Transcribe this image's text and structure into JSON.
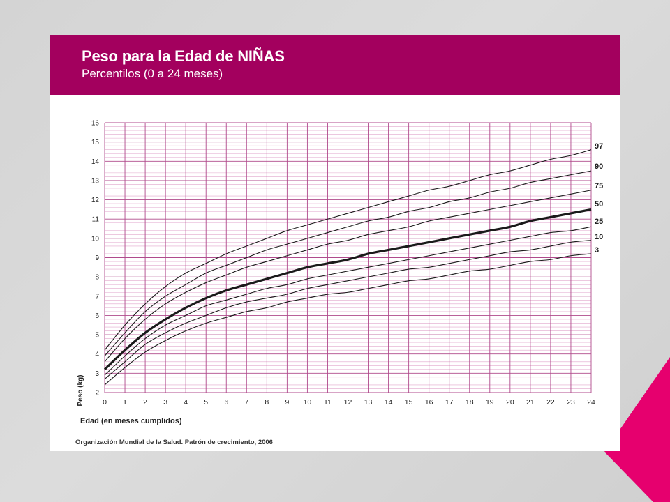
{
  "header": {
    "title": "Peso para la Edad de NIÑAS",
    "subtitle": "Percentilos (0 a 24 meses)"
  },
  "footer": {
    "source": "Organización Mundial de la Salud. Patrón de crecimiento, 2006"
  },
  "colors": {
    "header_bg": "#a3005e",
    "grid_major": "#b04a8c",
    "grid_minor": "#e2a6cc",
    "curve": "#1a1a1a",
    "accent": "#e6006e"
  },
  "chart_data": {
    "type": "line",
    "title": "Peso para la Edad de NIÑAS",
    "subtitle": "Percentilos (0 a 24 meses)",
    "xlabel": "Edad (en meses cumplidos)",
    "ylabel": "Peso (kg)",
    "xlim": [
      0,
      24
    ],
    "ylim": [
      2,
      16
    ],
    "x_ticks": [
      0,
      1,
      2,
      3,
      4,
      5,
      6,
      7,
      8,
      9,
      10,
      11,
      12,
      13,
      14,
      15,
      16,
      17,
      18,
      19,
      20,
      21,
      22,
      23,
      24
    ],
    "y_ticks": [
      2,
      3,
      4,
      5,
      6,
      7,
      8,
      9,
      10,
      11,
      12,
      13,
      14,
      15,
      16
    ],
    "grid": true,
    "legend": "right-end labels",
    "x": [
      0,
      1,
      2,
      3,
      4,
      5,
      6,
      7,
      8,
      9,
      10,
      11,
      12,
      13,
      14,
      15,
      16,
      17,
      18,
      19,
      20,
      21,
      22,
      23,
      24
    ],
    "series": [
      {
        "name": "97",
        "bold": false,
        "values": [
          4.2,
          5.5,
          6.6,
          7.5,
          8.2,
          8.7,
          9.2,
          9.6,
          10.0,
          10.4,
          10.7,
          11.0,
          11.3,
          11.6,
          11.9,
          12.2,
          12.5,
          12.7,
          13.0,
          13.3,
          13.5,
          13.8,
          14.1,
          14.3,
          14.6
        ]
      },
      {
        "name": "90",
        "bold": false,
        "values": [
          3.9,
          5.1,
          6.2,
          7.0,
          7.6,
          8.2,
          8.6,
          9.0,
          9.4,
          9.7,
          10.0,
          10.3,
          10.6,
          10.9,
          11.1,
          11.4,
          11.6,
          11.9,
          12.1,
          12.4,
          12.6,
          12.9,
          13.1,
          13.3,
          13.5
        ]
      },
      {
        "name": "75",
        "bold": false,
        "values": [
          3.6,
          4.8,
          5.8,
          6.6,
          7.2,
          7.7,
          8.1,
          8.5,
          8.8,
          9.1,
          9.4,
          9.7,
          9.9,
          10.2,
          10.4,
          10.6,
          10.9,
          11.1,
          11.3,
          11.5,
          11.7,
          11.9,
          12.1,
          12.3,
          12.5
        ]
      },
      {
        "name": "50",
        "bold": true,
        "values": [
          3.2,
          4.2,
          5.1,
          5.8,
          6.4,
          6.9,
          7.3,
          7.6,
          7.9,
          8.2,
          8.5,
          8.7,
          8.9,
          9.2,
          9.4,
          9.6,
          9.8,
          10.0,
          10.2,
          10.4,
          10.6,
          10.9,
          11.1,
          11.3,
          11.5
        ]
      },
      {
        "name": "25",
        "bold": false,
        "values": [
          2.9,
          3.9,
          4.8,
          5.5,
          6.0,
          6.5,
          6.8,
          7.1,
          7.4,
          7.6,
          7.9,
          8.1,
          8.3,
          8.5,
          8.7,
          8.9,
          9.1,
          9.3,
          9.5,
          9.7,
          9.9,
          10.1,
          10.3,
          10.4,
          10.6
        ]
      },
      {
        "name": "10",
        "bold": false,
        "values": [
          2.7,
          3.6,
          4.5,
          5.1,
          5.6,
          6.0,
          6.4,
          6.7,
          6.9,
          7.1,
          7.4,
          7.6,
          7.8,
          8.0,
          8.2,
          8.4,
          8.5,
          8.7,
          8.9,
          9.1,
          9.3,
          9.4,
          9.6,
          9.8,
          9.9
        ]
      },
      {
        "name": "3",
        "bold": false,
        "values": [
          2.4,
          3.3,
          4.1,
          4.7,
          5.2,
          5.6,
          5.9,
          6.2,
          6.4,
          6.7,
          6.9,
          7.1,
          7.2,
          7.4,
          7.6,
          7.8,
          7.9,
          8.1,
          8.3,
          8.4,
          8.6,
          8.8,
          8.9,
          9.1,
          9.2
        ]
      }
    ]
  }
}
